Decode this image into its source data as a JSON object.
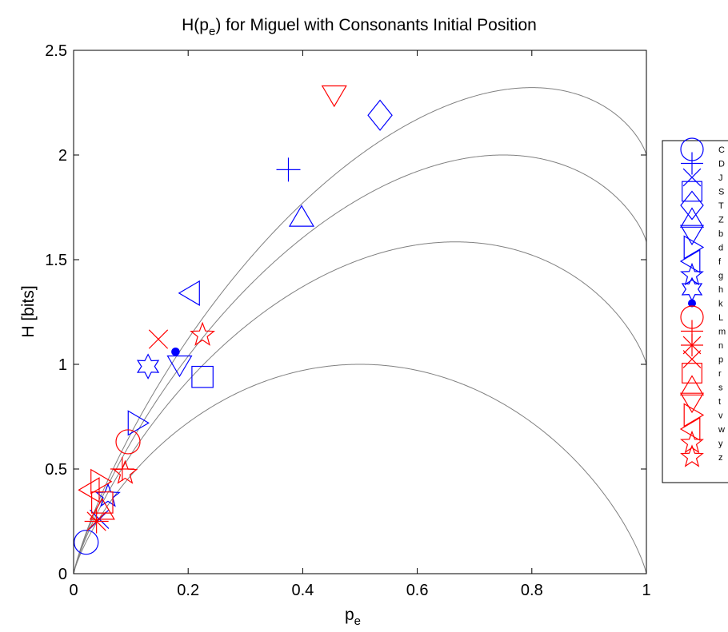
{
  "chart_data": {
    "type": "scatter",
    "title": "H(p_e) for Miguel with Consonants Initial Position",
    "title_parts": [
      "H(p",
      "e",
      ") for Miguel with Consonants Initial Position"
    ],
    "xlabel_parts": [
      "p",
      "e"
    ],
    "ylabel": "H [bits]",
    "xlim": [
      0,
      1
    ],
    "ylim": [
      0,
      2.5
    ],
    "xticks": [
      0,
      0.2,
      0.4,
      0.6,
      0.8,
      1
    ],
    "xtick_labels": [
      "0",
      "0.2",
      "0.4",
      "0.6",
      "0.8",
      "1"
    ],
    "yticks": [
      0,
      0.5,
      1,
      1.5,
      2,
      2.5
    ],
    "ytick_labels": [
      "0",
      "0.5",
      "1",
      "1.5",
      "2",
      "2.5"
    ],
    "grid": false,
    "legend_position": "outside-right",
    "colors": {
      "blue": "#0000ff",
      "red": "#ff0000",
      "curve": "#808080"
    },
    "curves": [
      {
        "alphabet_size": 2
      },
      {
        "alphabet_size": 3
      },
      {
        "alphabet_size": 4
      },
      {
        "alphabet_size": 5
      }
    ],
    "series": [
      {
        "name": "C",
        "marker": "circle",
        "color": "#0000ff",
        "x": 0.022,
        "y": 0.15
      },
      {
        "name": "D",
        "marker": "plus",
        "color": "#0000ff",
        "x": 0.375,
        "y": 1.93
      },
      {
        "name": "J",
        "marker": "x",
        "color": "#0000ff",
        "x": 0.045,
        "y": 0.26
      },
      {
        "name": "S",
        "marker": "square",
        "color": "#0000ff",
        "x": 0.225,
        "y": 0.94
      },
      {
        "name": "T",
        "marker": "diamond",
        "color": "#0000ff",
        "x": 0.535,
        "y": 2.19
      },
      {
        "name": "Z",
        "marker": "triangle-up",
        "color": "#0000ff",
        "x": 0.398,
        "y": 1.7
      },
      {
        "name": "b",
        "marker": "triangle-down",
        "color": "#0000ff",
        "x": 0.185,
        "y": 1.0
      },
      {
        "name": "d",
        "marker": "triangle-right",
        "color": "#0000ff",
        "x": 0.11,
        "y": 0.72
      },
      {
        "name": "f",
        "marker": "triangle-left",
        "color": "#0000ff",
        "x": 0.205,
        "y": 1.34
      },
      {
        "name": "g",
        "marker": "star5",
        "color": "#0000ff",
        "x": 0.06,
        "y": 0.37
      },
      {
        "name": "h",
        "marker": "star6",
        "color": "#0000ff",
        "x": 0.13,
        "y": 0.99
      },
      {
        "name": "k",
        "marker": "dot",
        "color": "#0000ff",
        "x": 0.178,
        "y": 1.06
      },
      {
        "name": "L",
        "marker": "circle",
        "color": "#ff0000",
        "x": 0.095,
        "y": 0.63
      },
      {
        "name": "m",
        "marker": "plus",
        "color": "#ff0000",
        "x": 0.085,
        "y": 0.5
      },
      {
        "name": "n",
        "marker": "asterisk",
        "color": "#ff0000",
        "x": 0.04,
        "y": 0.25
      },
      {
        "name": "p",
        "marker": "x",
        "color": "#ff0000",
        "x": 0.148,
        "y": 1.12
      },
      {
        "name": "r",
        "marker": "square",
        "color": "#ff0000",
        "x": 0.05,
        "y": 0.34
      },
      {
        "name": "s",
        "marker": "triangle-up",
        "color": "#ff0000",
        "x": 0.05,
        "y": 0.3
      },
      {
        "name": "t",
        "marker": "triangle-down",
        "color": "#ff0000",
        "x": 0.455,
        "y": 2.29
      },
      {
        "name": "v",
        "marker": "triangle-right",
        "color": "#ff0000",
        "x": 0.045,
        "y": 0.44
      },
      {
        "name": "w",
        "marker": "triangle-left",
        "color": "#ff0000",
        "x": 0.03,
        "y": 0.4
      },
      {
        "name": "y",
        "marker": "star5",
        "color": "#ff0000",
        "x": 0.225,
        "y": 1.14
      },
      {
        "name": "z",
        "marker": "star5",
        "color": "#ff0000",
        "x": 0.09,
        "y": 0.48
      }
    ]
  }
}
